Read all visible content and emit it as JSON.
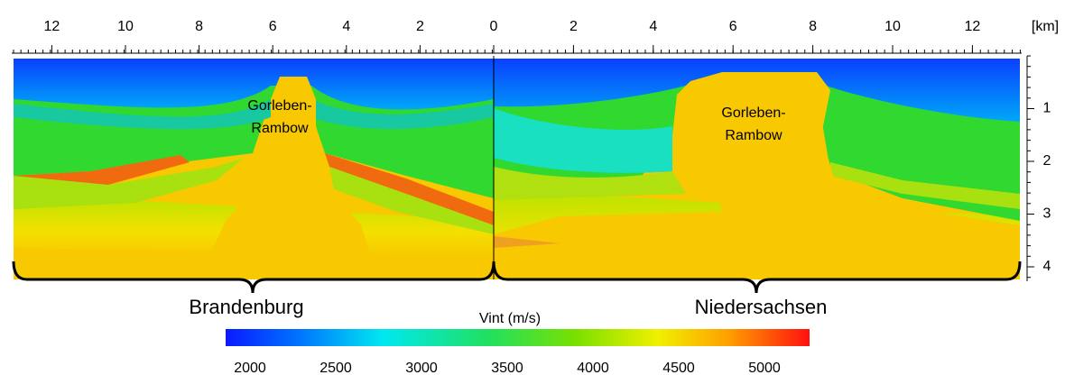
{
  "top_axis": {
    "unit": "[km]",
    "left_ticks": [
      12,
      10,
      8,
      6,
      4,
      2,
      0
    ],
    "right_ticks": [
      2,
      4,
      6,
      8,
      10,
      12
    ]
  },
  "depth_axis": {
    "ticks": [
      1,
      2,
      3,
      4
    ]
  },
  "annotations": {
    "left_structure": [
      "Gorleben-",
      "Rambow"
    ],
    "right_structure": [
      "Gorleben-",
      "Rambow"
    ]
  },
  "regions": [
    "Brandenburg",
    "Niedersachsen"
  ],
  "colorbar": {
    "title": "Vint (m/s)",
    "ticks": [
      2000,
      2500,
      3000,
      3500,
      4000,
      4500,
      5000
    ]
  }
}
